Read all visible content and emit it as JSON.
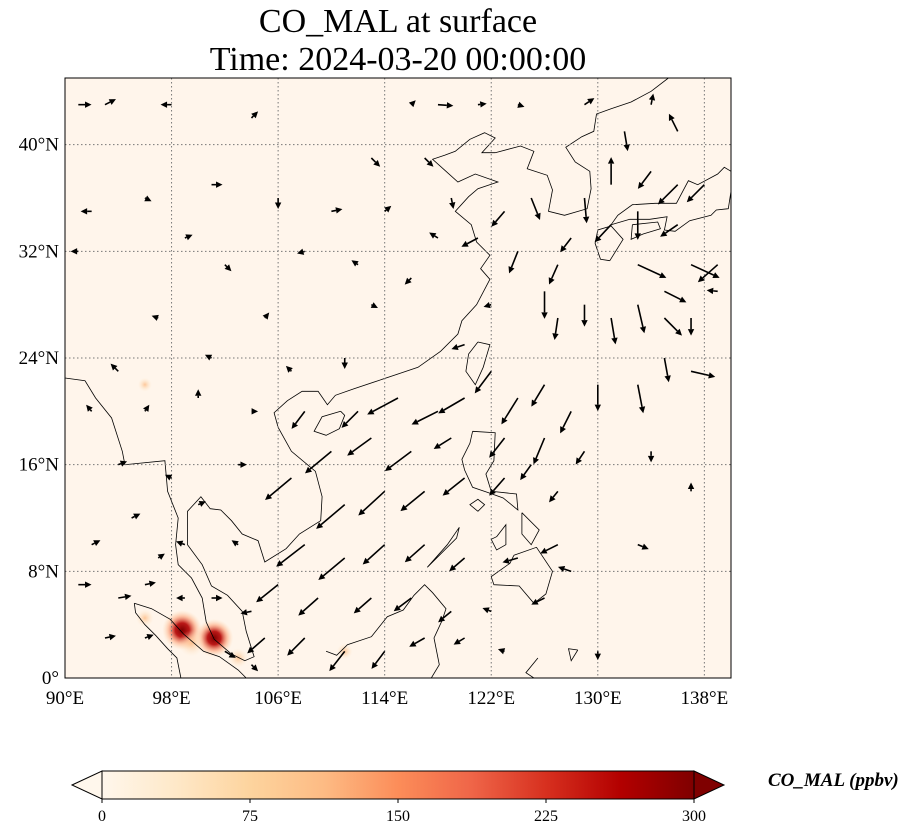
{
  "title": {
    "line1": "CO_MAL at surface",
    "line2": "Time: 2024-03-20 00:00:00"
  },
  "map": {
    "projection": "PlateCarree",
    "lon_range": [
      90,
      140
    ],
    "lat_range": [
      0,
      45
    ],
    "x_ticks": [
      {
        "value": 90,
        "label": "90°E"
      },
      {
        "value": 98,
        "label": "98°E"
      },
      {
        "value": 106,
        "label": "106°E"
      },
      {
        "value": 114,
        "label": "114°E"
      },
      {
        "value": 122,
        "label": "122°E"
      },
      {
        "value": 130,
        "label": "130°E"
      },
      {
        "value": 138,
        "label": "138°E"
      }
    ],
    "y_ticks": [
      {
        "value": 0,
        "label": "0°"
      },
      {
        "value": 8,
        "label": "8°N"
      },
      {
        "value": 16,
        "label": "16°N"
      },
      {
        "value": 24,
        "label": "24°N"
      },
      {
        "value": 32,
        "label": "32°N"
      },
      {
        "value": 40,
        "label": "40°N"
      }
    ],
    "gridlines": true,
    "background_color": "#fff5eb",
    "coastline_color": "#000000",
    "field_hotspots": [
      {
        "lon": 98.8,
        "lat": 3.6,
        "value": 300
      },
      {
        "lon": 101.2,
        "lat": 3.0,
        "value": 280
      },
      {
        "lon": 99.5,
        "lat": 2.6,
        "value": 150
      },
      {
        "lon": 103.0,
        "lat": 1.5,
        "value": 80
      },
      {
        "lon": 96.0,
        "lat": 4.5,
        "value": 60
      },
      {
        "lon": 111.0,
        "lat": 2.0,
        "value": 40
      },
      {
        "lon": 96.0,
        "lat": 22.0,
        "value": 20
      }
    ],
    "wind_vectors": [
      {
        "lon": 91,
        "lat": 43,
        "u": 1.2,
        "v": 0.0
      },
      {
        "lon": 93,
        "lat": 43,
        "u": 1.0,
        "v": 0.5
      },
      {
        "lon": 98,
        "lat": 43,
        "u": -1.0,
        "v": 0.0
      },
      {
        "lon": 104,
        "lat": 42,
        "u": 0.6,
        "v": 0.6
      },
      {
        "lon": 116,
        "lat": 43,
        "u": 0.4,
        "v": 0.4
      },
      {
        "lon": 118,
        "lat": 43,
        "u": 1.4,
        "v": -0.1
      },
      {
        "lon": 121,
        "lat": 43,
        "u": 0.8,
        "v": 0.1
      },
      {
        "lon": 124,
        "lat": 43,
        "u": 0.6,
        "v": -0.2
      },
      {
        "lon": 129,
        "lat": 43,
        "u": 0.9,
        "v": 0.6
      },
      {
        "lon": 134,
        "lat": 43,
        "u": 0.2,
        "v": 1.0
      },
      {
        "lon": 136,
        "lat": 41,
        "u": -0.8,
        "v": 1.6
      },
      {
        "lon": 132,
        "lat": 41,
        "u": 0.3,
        "v": -1.8
      },
      {
        "lon": 134,
        "lat": 38,
        "u": -1.2,
        "v": -1.6
      },
      {
        "lon": 136,
        "lat": 37,
        "u": -1.8,
        "v": -1.8
      },
      {
        "lon": 138,
        "lat": 37,
        "u": -1.6,
        "v": -1.6
      },
      {
        "lon": 131,
        "lat": 37,
        "u": 0.0,
        "v": 2.5
      },
      {
        "lon": 129,
        "lat": 36,
        "u": 0.2,
        "v": -2.3
      },
      {
        "lon": 133,
        "lat": 35,
        "u": 0.0,
        "v": -2.6
      },
      {
        "lon": 131,
        "lat": 34,
        "u": -1.5,
        "v": -1.6
      },
      {
        "lon": 136,
        "lat": 34,
        "u": -1.6,
        "v": -1.1
      },
      {
        "lon": 137,
        "lat": 31,
        "u": 2.6,
        "v": -1.2
      },
      {
        "lon": 133,
        "lat": 31,
        "u": 2.6,
        "v": -1.2
      },
      {
        "lon": 135,
        "lat": 29,
        "u": 2.0,
        "v": -1.0
      },
      {
        "lon": 139,
        "lat": 31,
        "u": -1.8,
        "v": -1.6
      },
      {
        "lon": 139,
        "lat": 29,
        "u": -1.0,
        "v": 0.1
      },
      {
        "lon": 133,
        "lat": 28,
        "u": 0.6,
        "v": -2.6
      },
      {
        "lon": 135,
        "lat": 27,
        "u": 1.6,
        "v": -1.6
      },
      {
        "lon": 137,
        "lat": 27,
        "u": 0.0,
        "v": -1.6
      },
      {
        "lon": 131,
        "lat": 27,
        "u": 0.4,
        "v": -2.4
      },
      {
        "lon": 129,
        "lat": 28,
        "u": 0.0,
        "v": -2.0
      },
      {
        "lon": 127,
        "lat": 27,
        "u": -0.3,
        "v": -2.0
      },
      {
        "lon": 126,
        "lat": 29,
        "u": 0.0,
        "v": -2.5
      },
      {
        "lon": 124,
        "lat": 32,
        "u": -0.8,
        "v": -2.0
      },
      {
        "lon": 127,
        "lat": 31,
        "u": -0.8,
        "v": -1.8
      },
      {
        "lon": 128,
        "lat": 33,
        "u": -1.0,
        "v": -1.3
      },
      {
        "lon": 125,
        "lat": 36,
        "u": 0.8,
        "v": -2.0
      },
      {
        "lon": 123,
        "lat": 35,
        "u": -1.2,
        "v": -1.4
      },
      {
        "lon": 121,
        "lat": 33,
        "u": -1.5,
        "v": -0.8
      },
      {
        "lon": 119,
        "lat": 36,
        "u": 0.2,
        "v": -1.0
      },
      {
        "lon": 117,
        "lat": 39,
        "u": 0.8,
        "v": -0.8
      },
      {
        "lon": 113,
        "lat": 39,
        "u": 0.8,
        "v": -0.8
      },
      {
        "lon": 118,
        "lat": 33,
        "u": -0.8,
        "v": 0.5
      },
      {
        "lon": 114,
        "lat": 35,
        "u": 0.6,
        "v": 0.5
      },
      {
        "lon": 110,
        "lat": 35,
        "u": 1.0,
        "v": 0.2
      },
      {
        "lon": 106,
        "lat": 36,
        "u": 0.0,
        "v": -1.0
      },
      {
        "lon": 101,
        "lat": 37,
        "u": 1.0,
        "v": 0.0
      },
      {
        "lon": 92,
        "lat": 35,
        "u": -1.0,
        "v": 0.0
      },
      {
        "lon": 96,
        "lat": 36,
        "u": 0.6,
        "v": -0.3
      },
      {
        "lon": 91,
        "lat": 32,
        "u": -0.7,
        "v": 0.0
      },
      {
        "lon": 99,
        "lat": 33,
        "u": 0.7,
        "v": 0.3
      },
      {
        "lon": 102,
        "lat": 31,
        "u": 0.6,
        "v": -0.6
      },
      {
        "lon": 108,
        "lat": 32,
        "u": -0.7,
        "v": -0.2
      },
      {
        "lon": 112,
        "lat": 31,
        "u": -0.6,
        "v": 0.4
      },
      {
        "lon": 116,
        "lat": 30,
        "u": -0.6,
        "v": -0.6
      },
      {
        "lon": 122,
        "lat": 28,
        "u": -0.7,
        "v": -0.2
      },
      {
        "lon": 120,
        "lat": 25,
        "u": -1.2,
        "v": -0.4
      },
      {
        "lon": 113,
        "lat": 28,
        "u": 0.6,
        "v": -0.3
      },
      {
        "lon": 105,
        "lat": 27,
        "u": 0.4,
        "v": 0.5
      },
      {
        "lon": 97,
        "lat": 27,
        "u": -0.6,
        "v": 0.2
      },
      {
        "lon": 101,
        "lat": 24,
        "u": -0.6,
        "v": 0.3
      },
      {
        "lon": 111,
        "lat": 24,
        "u": 0.0,
        "v": -1.0
      },
      {
        "lon": 107,
        "lat": 23,
        "u": -0.5,
        "v": 0.5
      },
      {
        "lon": 94,
        "lat": 23,
        "u": -0.7,
        "v": 0.7
      },
      {
        "lon": 92,
        "lat": 20,
        "u": -0.5,
        "v": 0.6
      },
      {
        "lon": 96,
        "lat": 20,
        "u": 0.4,
        "v": 0.6
      },
      {
        "lon": 100,
        "lat": 21,
        "u": 0.0,
        "v": 0.8
      },
      {
        "lon": 104,
        "lat": 20,
        "u": 0.6,
        "v": 0.0
      },
      {
        "lon": 108,
        "lat": 20,
        "u": -1.2,
        "v": -1.6
      },
      {
        "lon": 112,
        "lat": 20,
        "u": -1.5,
        "v": -1.5
      },
      {
        "lon": 115,
        "lat": 21,
        "u": -2.8,
        "v": -1.5
      },
      {
        "lon": 118,
        "lat": 20,
        "u": -2.4,
        "v": -1.2
      },
      {
        "lon": 120,
        "lat": 21,
        "u": -2.4,
        "v": -1.4
      },
      {
        "lon": 122,
        "lat": 23,
        "u": -1.5,
        "v": -2.0
      },
      {
        "lon": 124,
        "lat": 21,
        "u": -1.5,
        "v": -2.4
      },
      {
        "lon": 126,
        "lat": 22,
        "u": -1.2,
        "v": -2.0
      },
      {
        "lon": 128,
        "lat": 20,
        "u": -1.0,
        "v": -2.0
      },
      {
        "lon": 130,
        "lat": 22,
        "u": 0.0,
        "v": -2.4
      },
      {
        "lon": 133,
        "lat": 22,
        "u": 0.5,
        "v": -2.6
      },
      {
        "lon": 135,
        "lat": 24,
        "u": 0.4,
        "v": -2.2
      },
      {
        "lon": 137,
        "lat": 23,
        "u": 2.2,
        "v": -0.5
      },
      {
        "lon": 110,
        "lat": 17,
        "u": -2.4,
        "v": -2.0
      },
      {
        "lon": 113,
        "lat": 18,
        "u": -2.2,
        "v": -1.6
      },
      {
        "lon": 116,
        "lat": 17,
        "u": -2.4,
        "v": -1.8
      },
      {
        "lon": 119,
        "lat": 18,
        "u": -1.6,
        "v": -1.0
      },
      {
        "lon": 123,
        "lat": 18,
        "u": -1.4,
        "v": -1.8
      },
      {
        "lon": 126,
        "lat": 18,
        "u": -1.0,
        "v": -2.4
      },
      {
        "lon": 129,
        "lat": 17,
        "u": -0.8,
        "v": -1.2
      },
      {
        "lon": 134,
        "lat": 17,
        "u": 0.0,
        "v": -1.0
      },
      {
        "lon": 103,
        "lat": 16,
        "u": 0.8,
        "v": 0.0
      },
      {
        "lon": 107,
        "lat": 15,
        "u": -2.4,
        "v": -2.0
      },
      {
        "lon": 111,
        "lat": 13,
        "u": -2.6,
        "v": -2.2
      },
      {
        "lon": 114,
        "lat": 14,
        "u": -2.4,
        "v": -2.2
      },
      {
        "lon": 117,
        "lat": 14,
        "u": -2.2,
        "v": -1.8
      },
      {
        "lon": 120,
        "lat": 15,
        "u": -2.0,
        "v": -1.6
      },
      {
        "lon": 123,
        "lat": 15,
        "u": -1.4,
        "v": -1.6
      },
      {
        "lon": 125,
        "lat": 16,
        "u": -1.0,
        "v": -1.4
      },
      {
        "lon": 127,
        "lat": 14,
        "u": -0.8,
        "v": -1.0
      },
      {
        "lon": 137,
        "lat": 14,
        "u": 0.0,
        "v": 0.8
      },
      {
        "lon": 94,
        "lat": 16,
        "u": 0.8,
        "v": 0.3
      },
      {
        "lon": 98,
        "lat": 15,
        "u": -0.6,
        "v": 0.3
      },
      {
        "lon": 100,
        "lat": 13,
        "u": 0.7,
        "v": 0.3
      },
      {
        "lon": 95,
        "lat": 12,
        "u": 0.8,
        "v": 0.4
      },
      {
        "lon": 103,
        "lat": 10,
        "u": -0.6,
        "v": 0.4
      },
      {
        "lon": 108,
        "lat": 10,
        "u": -2.6,
        "v": -2.0
      },
      {
        "lon": 111,
        "lat": 9,
        "u": -2.4,
        "v": -2.0
      },
      {
        "lon": 114,
        "lat": 10,
        "u": -2.0,
        "v": -1.8
      },
      {
        "lon": 117,
        "lat": 10,
        "u": -1.8,
        "v": -1.6
      },
      {
        "lon": 120,
        "lat": 9,
        "u": -1.4,
        "v": -1.2
      },
      {
        "lon": 124,
        "lat": 9,
        "u": -1.4,
        "v": -0.4
      },
      {
        "lon": 127,
        "lat": 10,
        "u": -1.6,
        "v": -0.8
      },
      {
        "lon": 133,
        "lat": 10,
        "u": 1.0,
        "v": -0.4
      },
      {
        "lon": 92,
        "lat": 10,
        "u": 0.8,
        "v": 0.4
      },
      {
        "lon": 97,
        "lat": 9,
        "u": 0.6,
        "v": 0.4
      },
      {
        "lon": 99,
        "lat": 10,
        "u": -0.8,
        "v": 0.3
      },
      {
        "lon": 106,
        "lat": 7,
        "u": -2.0,
        "v": -1.6
      },
      {
        "lon": 109,
        "lat": 6,
        "u": -1.8,
        "v": -1.6
      },
      {
        "lon": 113,
        "lat": 6,
        "u": -1.6,
        "v": -1.4
      },
      {
        "lon": 116,
        "lat": 6,
        "u": -1.6,
        "v": -1.2
      },
      {
        "lon": 119,
        "lat": 5,
        "u": -1.2,
        "v": -1.0
      },
      {
        "lon": 122,
        "lat": 5,
        "u": -0.8,
        "v": 0.3
      },
      {
        "lon": 126,
        "lat": 6,
        "u": -1.2,
        "v": -0.6
      },
      {
        "lon": 128,
        "lat": 8,
        "u": -1.2,
        "v": 0.4
      },
      {
        "lon": 91,
        "lat": 7,
        "u": 1.2,
        "v": 0.0
      },
      {
        "lon": 94,
        "lat": 6,
        "u": 1.2,
        "v": 0.2
      },
      {
        "lon": 96,
        "lat": 7,
        "u": 1.0,
        "v": 0.2
      },
      {
        "lon": 99,
        "lat": 6,
        "u": -0.8,
        "v": 0.0
      },
      {
        "lon": 101,
        "lat": 6,
        "u": 1.0,
        "v": 0.0
      },
      {
        "lon": 104,
        "lat": 5,
        "u": -1.0,
        "v": -0.2
      },
      {
        "lon": 105,
        "lat": 3,
        "u": -1.6,
        "v": -1.4
      },
      {
        "lon": 108,
        "lat": 3,
        "u": -1.6,
        "v": -1.6
      },
      {
        "lon": 111,
        "lat": 2,
        "u": -1.4,
        "v": -1.8
      },
      {
        "lon": 114,
        "lat": 2,
        "u": -1.2,
        "v": -1.6
      },
      {
        "lon": 117,
        "lat": 3,
        "u": -1.4,
        "v": -0.8
      },
      {
        "lon": 120,
        "lat": 3,
        "u": -1.0,
        "v": -0.6
      },
      {
        "lon": 123,
        "lat": 2,
        "u": -0.6,
        "v": 0.2
      },
      {
        "lon": 130,
        "lat": 2,
        "u": 0.0,
        "v": -0.8
      },
      {
        "lon": 93,
        "lat": 3,
        "u": 1.0,
        "v": 0.2
      },
      {
        "lon": 96,
        "lat": 3,
        "u": 0.8,
        "v": 0.3
      },
      {
        "lon": 102,
        "lat": 2,
        "u": 1.0,
        "v": -0.6
      },
      {
        "lon": 104,
        "lat": 1,
        "u": 0.6,
        "v": -0.6
      }
    ]
  },
  "colorbar": {
    "label": "CO_MAL (ppbv)",
    "min": 0,
    "max": 300,
    "ticks": [
      {
        "value": 0,
        "label": "0"
      },
      {
        "value": 75,
        "label": "75"
      },
      {
        "value": 150,
        "label": "150"
      },
      {
        "value": 225,
        "label": "225"
      },
      {
        "value": 300,
        "label": "300"
      }
    ],
    "extend": "both",
    "colormap": "OrRd",
    "stops": [
      "#fff7ec",
      "#fee8c8",
      "#fdd49e",
      "#fdbb84",
      "#fc8d59",
      "#ef6548",
      "#d7301f",
      "#b30000",
      "#7f0000"
    ]
  }
}
